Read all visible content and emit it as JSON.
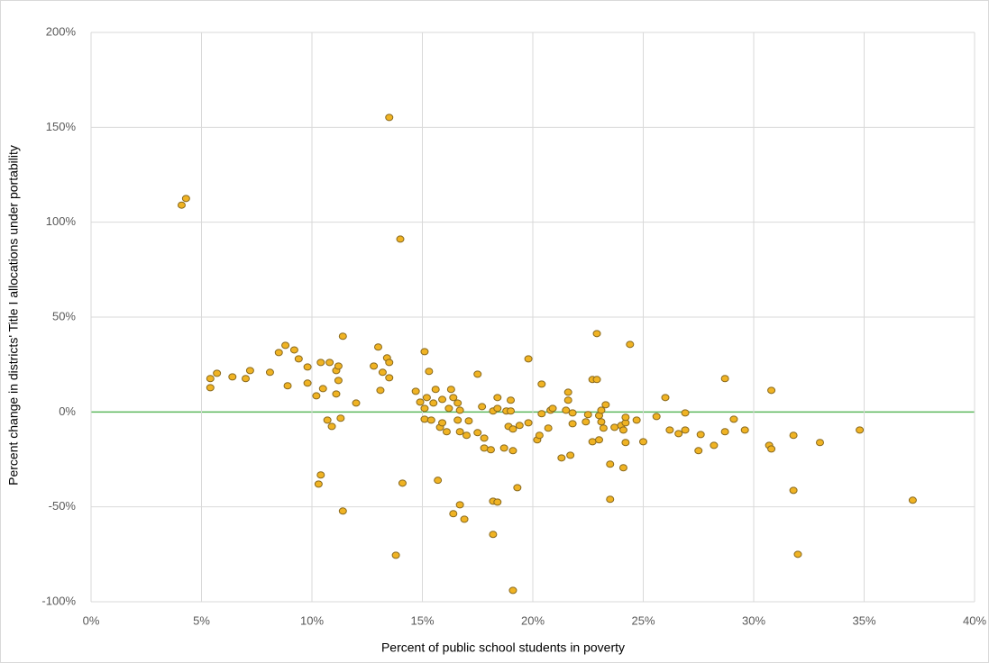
{
  "chart_data": {
    "type": "scatter",
    "x_label": "Percent of public school students in poverty",
    "y_label": "Percent change in districts' Title I allocations under portability",
    "color": "#f0b323",
    "edge_color": "#8a6a1e",
    "grid": true,
    "zero_line_color": "#5cb85c",
    "xlim": [
      0,
      40
    ],
    "ylim": [
      -100,
      200
    ],
    "xticks": [
      {
        "value": 0,
        "label": "0%"
      },
      {
        "value": 5,
        "label": "5%"
      },
      {
        "value": 10,
        "label": "10%"
      },
      {
        "value": 15,
        "label": "15%"
      },
      {
        "value": 20,
        "label": "20%"
      },
      {
        "value": 25,
        "label": "25%"
      },
      {
        "value": 30,
        "label": "30%"
      },
      {
        "value": 35,
        "label": "35%"
      },
      {
        "value": 40,
        "label": "40%"
      }
    ],
    "yticks": [
      {
        "value": -100,
        "label": "-100%"
      },
      {
        "value": -50,
        "label": "-50%"
      },
      {
        "value": 0,
        "label": "0%"
      },
      {
        "value": 50,
        "label": "50%"
      },
      {
        "value": 100,
        "label": "100%"
      },
      {
        "value": 150,
        "label": "150%"
      },
      {
        "value": 200,
        "label": "200%"
      }
    ],
    "x": [
      4.1,
      4.3,
      5.4,
      5.4,
      5.7,
      6.4,
      7.0,
      7.2,
      8.1,
      8.5,
      8.8,
      8.9,
      9.2,
      9.4,
      9.8,
      9.8,
      10.2,
      10.4,
      10.5,
      10.8,
      10.7,
      10.9,
      11.1,
      11.1,
      11.2,
      11.2,
      11.3,
      11.4,
      11.4,
      10.3,
      10.4,
      12.0,
      12.8,
      13.0,
      13.1,
      13.2,
      13.4,
      13.5,
      13.5,
      13.5,
      13.8,
      14.0,
      14.1,
      14.7,
      14.9,
      15.1,
      15.1,
      15.1,
      15.2,
      15.3,
      15.4,
      15.5,
      15.6,
      15.7,
      15.8,
      15.9,
      15.9,
      16.1,
      16.2,
      16.3,
      16.4,
      16.4,
      16.6,
      16.6,
      16.7,
      16.7,
      16.7,
      16.9,
      17.0,
      17.1,
      17.5,
      17.5,
      17.7,
      17.8,
      17.8,
      18.1,
      18.2,
      18.2,
      18.2,
      18.4,
      18.4,
      18.4,
      18.7,
      18.8,
      18.9,
      19.0,
      19.0,
      19.1,
      19.1,
      19.1,
      19.3,
      19.4,
      19.8,
      19.8,
      20.2,
      20.3,
      20.4,
      20.4,
      20.7,
      20.8,
      20.9,
      21.3,
      21.5,
      21.6,
      21.6,
      21.7,
      21.8,
      21.8,
      22.4,
      22.5,
      22.7,
      22.7,
      22.9,
      22.9,
      23.0,
      23.0,
      23.1,
      23.1,
      23.2,
      23.3,
      23.5,
      23.5,
      23.7,
      24.0,
      24.1,
      24.2,
      24.2,
      24.2,
      24.1,
      24.4,
      24.7,
      25.0,
      25.6,
      26.0,
      26.2,
      26.6,
      26.9,
      26.9,
      27.5,
      27.6,
      28.2,
      28.7,
      28.7,
      29.1,
      29.6,
      30.8,
      30.7,
      30.8,
      31.8,
      31.8,
      32.0,
      33.0,
      34.8,
      37.2
    ],
    "values": [
      109,
      112.5,
      17.6,
      12.8,
      20.4,
      18.5,
      17.6,
      21.8,
      20.9,
      31.3,
      35.1,
      13.8,
      32.7,
      28,
      23.7,
      15.2,
      8.5,
      26.1,
      12.3,
      26.1,
      -4.3,
      -7.6,
      9.5,
      21.8,
      24.2,
      16.6,
      -3.3,
      39.9,
      -52.2,
      -38,
      -33.2,
      4.7,
      24.2,
      34.2,
      11.4,
      20.9,
      28.5,
      26.1,
      18,
      155.2,
      -75.5,
      91.1,
      -37.5,
      10.9,
      5.2,
      31.8,
      1.9,
      -3.8,
      7.6,
      21.4,
      -4.3,
      4.7,
      11.9,
      -36,
      -8.1,
      6.6,
      -5.7,
      -10.4,
      1.9,
      11.9,
      -53.6,
      7.6,
      4.7,
      -4.3,
      -10.4,
      -48.9,
      0.9,
      -56.5,
      -12.3,
      -4.7,
      -10.9,
      19.9,
      2.8,
      -13.8,
      -19,
      -19.9,
      0.5,
      -47,
      -64.5,
      7.6,
      1.9,
      -47.5,
      -19,
      0.5,
      -7.6,
      6.2,
      0.5,
      -9,
      -94,
      -20.4,
      -39.9,
      -7.1,
      -5.7,
      28,
      -14.7,
      -12.3,
      14.7,
      -0.9,
      -8.5,
      0.9,
      1.9,
      -24.2,
      0.9,
      10.4,
      6.2,
      -22.8,
      -0.5,
      -6.2,
      -5.2,
      -1.4,
      -15.7,
      17.1,
      17.1,
      41.3,
      -1.9,
      -14.7,
      0.9,
      -5.2,
      -8.5,
      3.8,
      -27.5,
      -46,
      -8.1,
      -7.1,
      -9.5,
      -5.7,
      -2.8,
      -16.1,
      -29.4,
      35.6,
      -4.3,
      -15.7,
      -2.4,
      7.6,
      -9.5,
      -11.4,
      -9.5,
      -0.5,
      -20.4,
      -11.9,
      -17.6,
      -10.4,
      17.6,
      -3.8,
      -9.5,
      11.4,
      -17.6,
      -19.5,
      -12.3,
      -41.3,
      -75,
      -16.1,
      -9.5,
      -46.5
    ]
  }
}
